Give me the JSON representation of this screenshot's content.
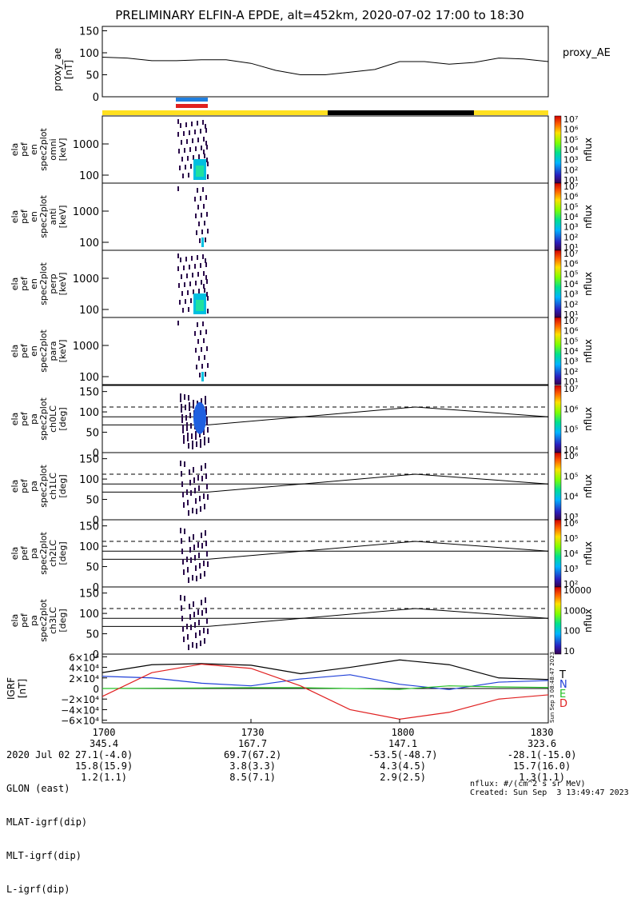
{
  "title": "PRELIMINARY ELFIN-A EPDE, alt=452km, 2020-07-02 17:00 to 18:30",
  "panels": {
    "ae": {
      "ylabel": [
        "proxy_ae",
        "[nT]"
      ],
      "legend": "proxy_AE",
      "ticks": [
        "150",
        "100",
        "50",
        "0"
      ]
    },
    "spec": [
      {
        "ylabel": [
          "ela",
          "pef",
          "en",
          "spec2plot",
          "omni",
          "[keV]"
        ],
        "ticks": [
          "1000",
          "100"
        ]
      },
      {
        "ylabel": [
          "ela",
          "pef",
          "en",
          "spec2plot",
          "anti",
          "[keV]"
        ],
        "ticks": [
          "1000",
          "100"
        ]
      },
      {
        "ylabel": [
          "ela",
          "pef",
          "en",
          "spec2plot",
          "perp",
          "[keV]"
        ],
        "ticks": [
          "1000",
          "100"
        ]
      },
      {
        "ylabel": [
          "ela",
          "pef",
          "en",
          "spec2plot",
          "para",
          "[keV]"
        ],
        "ticks": [
          "1000",
          "100"
        ]
      }
    ],
    "pa": [
      {
        "ylabel": [
          "ela",
          "pef",
          "pa",
          "spec2plot",
          "ch0LC",
          "[deg]"
        ],
        "ticks": [
          "150",
          "100",
          "50",
          "0"
        ]
      },
      {
        "ylabel": [
          "ela",
          "pef",
          "pa",
          "spec2plot",
          "ch1LC",
          "[deg]"
        ],
        "ticks": [
          "150",
          "100",
          "50",
          "0"
        ]
      },
      {
        "ylabel": [
          "ela",
          "pef",
          "pa",
          "spec2plot",
          "ch2LC",
          "[deg]"
        ],
        "ticks": [
          "150",
          "100",
          "50",
          "0"
        ]
      },
      {
        "ylabel": [
          "ela",
          "pef",
          "pa",
          "spec2plot",
          "ch3LC",
          "[deg]"
        ],
        "ticks": [
          "150",
          "100",
          "50",
          "0"
        ]
      }
    ],
    "igrf": {
      "ylabel": [
        "IGRF",
        "[nT]"
      ],
      "ticks": [
        "6×10⁴",
        "4×10⁴",
        "2×10⁴",
        "0",
        "−2×10⁴",
        "−4×10⁴",
        "−6×10⁴"
      ],
      "legend": [
        {
          "label": "T",
          "color": "#000000"
        },
        {
          "label": "N",
          "color": "#1f3fd8"
        },
        {
          "label": "E",
          "color": "#22c022"
        },
        {
          "label": "D",
          "color": "#e02020"
        }
      ],
      "side_note": "Sun Sep  3 08:48:47 2023"
    }
  },
  "colorbars": [
    {
      "ticks": [
        "10⁷",
        "10⁶",
        "10⁵",
        "10⁴",
        "10³",
        "10²",
        "10¹"
      ],
      "label": "nflux"
    },
    {
      "ticks": [
        "10⁷",
        "10⁶",
        "10⁵",
        "10⁴",
        "10³",
        "10²",
        "10¹"
      ],
      "label": "nflux"
    },
    {
      "ticks": [
        "10⁷",
        "10⁶",
        "10⁵",
        "10⁴",
        "10³",
        "10²",
        "10¹"
      ],
      "label": "nflux"
    },
    {
      "ticks": [
        "10⁷",
        "10⁶",
        "10⁵",
        "10⁴",
        "10³",
        "10²",
        "10¹"
      ],
      "label": "nflux"
    },
    {
      "ticks": [
        "10⁷",
        "10⁶",
        "10⁵",
        "10⁴"
      ],
      "label": "nflux"
    },
    {
      "ticks": [
        "10⁶",
        "10⁵",
        "10⁴",
        "10³"
      ],
      "label": "nflux"
    },
    {
      "ticks": [
        "10⁶",
        "10⁵",
        "10⁴",
        "10³",
        "10²"
      ],
      "label": "nflux"
    },
    {
      "ticks": [
        "10000",
        "1000",
        "100",
        "10"
      ],
      "label": "nflux"
    }
  ],
  "colors": {
    "yellow": "#ffe020",
    "black_bar": "#000000",
    "blue_bar": "#1f7fe0",
    "red_bar": "#e02020"
  },
  "footer": {
    "rows": [
      {
        "label": "2020 Jul 02",
        "values": [
          "1700",
          "1730",
          "1800",
          "1830"
        ]
      },
      {
        "label": "GLON (east)",
        "values": [
          "345.4",
          "167.7",
          "147.1",
          "323.6"
        ]
      },
      {
        "label": "MLAT-igrf(dip)",
        "values": [
          "27.1(-4.0)",
          "69.7(67.2)",
          "-53.5(-48.7)",
          "-28.1(-15.0)"
        ]
      },
      {
        "label": "MLT-igrf(dip)",
        "values": [
          "15.8(15.9)",
          "3.8(3.3)",
          "4.3(4.5)",
          "15.7(16.0)"
        ]
      },
      {
        "label": "L-igrf(dip)",
        "values": [
          "1.2(1.1)",
          "8.5(7.1)",
          "2.9(2.5)",
          "1.3(1.1)"
        ]
      }
    ],
    "note1": "nflux: #/(cm^2 s sr MeV)",
    "note2": "Created: Sun Sep  3 13:49:47 2023"
  },
  "chart_data": {
    "type": "line",
    "title": "PRELIMINARY ELFIN-A EPDE, alt=452km, 2020-07-02 17:00 to 18:30",
    "x_ticks": [
      "1700",
      "1730",
      "1800",
      "1830"
    ],
    "xlim": [
      "17:00",
      "18:30"
    ],
    "proxy_ae": {
      "ylim": [
        0,
        160
      ],
      "x_min": [
        0,
        5,
        10,
        15,
        20,
        25,
        30,
        35,
        40,
        45,
        50,
        55,
        60,
        65,
        70,
        75,
        80,
        85,
        90
      ],
      "values": [
        90,
        88,
        82,
        82,
        84,
        84,
        76,
        60,
        50,
        50,
        56,
        62,
        80,
        80,
        74,
        78,
        88,
        86,
        80
      ]
    },
    "igrf": {
      "ylim": [
        -65000,
        65000
      ],
      "series": [
        {
          "name": "T",
          "x_min": [
            0,
            10,
            20,
            30,
            40,
            50,
            60,
            70,
            80,
            90
          ],
          "values": [
            30000,
            45000,
            47000,
            44000,
            28000,
            40000,
            54000,
            45000,
            20000,
            17000
          ]
        },
        {
          "name": "N",
          "x_min": [
            0,
            10,
            20,
            30,
            40,
            50,
            60,
            70,
            80,
            90
          ],
          "values": [
            23000,
            20000,
            10000,
            5000,
            18000,
            26000,
            8000,
            -2000,
            12000,
            15000
          ]
        },
        {
          "name": "E",
          "x_min": [
            0,
            10,
            20,
            30,
            40,
            50,
            60,
            70,
            80,
            90
          ],
          "values": [
            0,
            500,
            1000,
            1500,
            1500,
            0,
            -1500,
            5000,
            3000,
            2000
          ]
        },
        {
          "name": "D",
          "x_min": [
            0,
            10,
            20,
            30,
            40,
            50,
            60,
            70,
            80,
            90
          ],
          "values": [
            -15000,
            30000,
            46000,
            38000,
            5000,
            -40000,
            -58000,
            -45000,
            -20000,
            -12000
          ]
        }
      ]
    }
  }
}
